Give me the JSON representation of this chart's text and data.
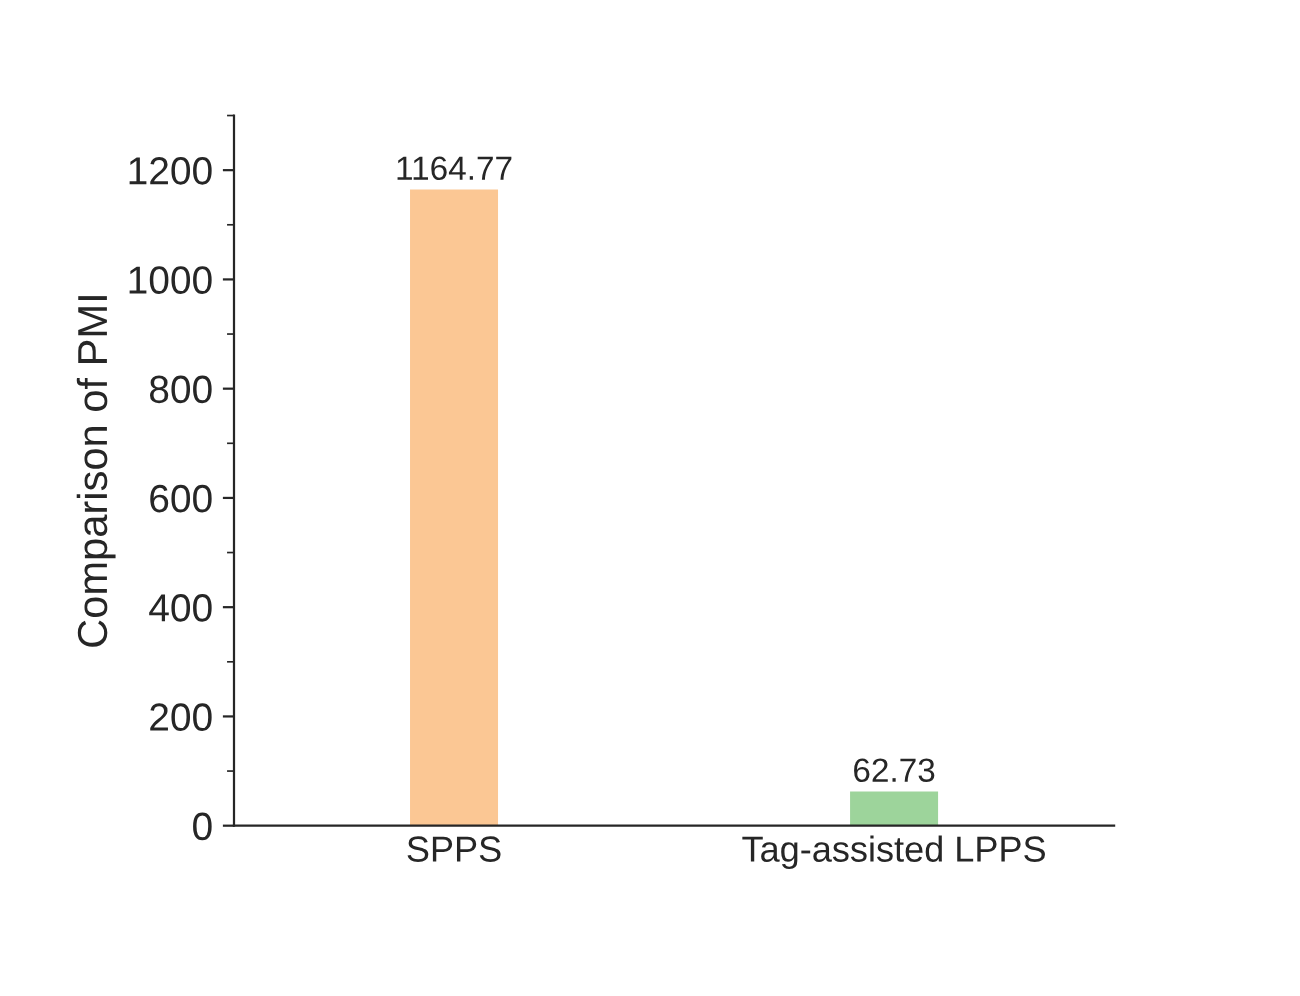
{
  "chart_data": {
    "type": "bar",
    "ylabel": "Comparison of PMI",
    "categories": [
      "SPPS",
      "Tag-assisted LPPS"
    ],
    "values": [
      1164.77,
      62.73
    ],
    "colors": [
      "#fbc794",
      "#9dd49b"
    ],
    "data_labels": true,
    "ylim": [
      0,
      1300
    ],
    "yticks": [
      0,
      200,
      400,
      600,
      800,
      1000,
      1200
    ],
    "grid": false,
    "legend": false
  }
}
